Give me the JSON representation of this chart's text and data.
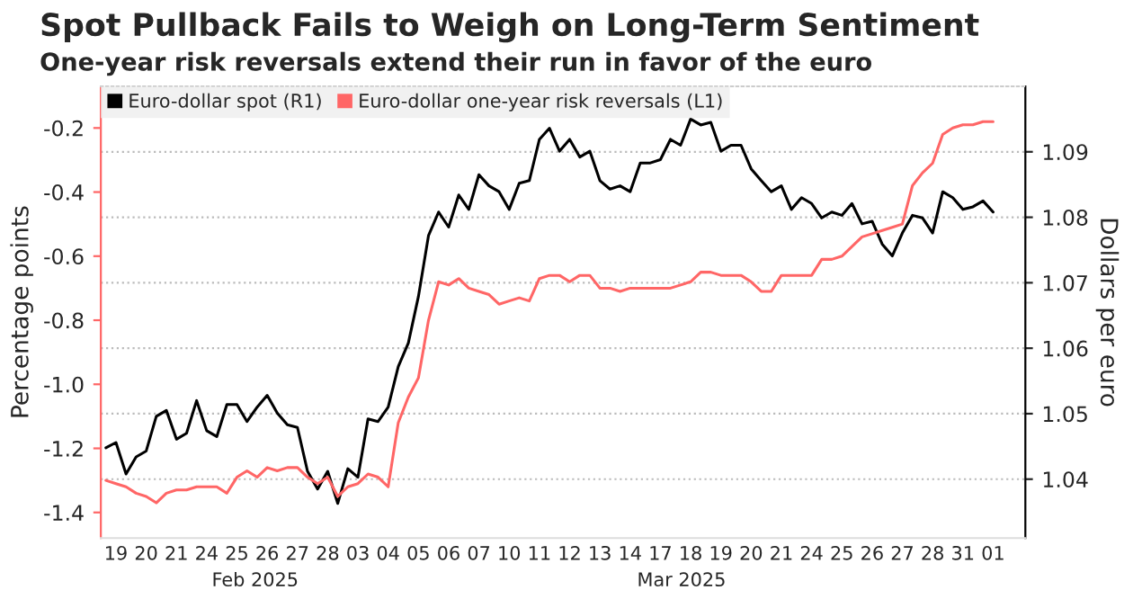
{
  "chart_data": {
    "type": "line",
    "title": "Spot Pullback Fails to Weigh on Long-Term Sentiment",
    "subtitle": "One-year risk reversals extend their run in favor of the euro",
    "ylabel": "Percentage points",
    "y2label": "Dollars per euro",
    "annotations": [
      "Feb 2025",
      "Mar 2025"
    ],
    "categories": [
      null,
      "19",
      null,
      null,
      "20",
      null,
      null,
      "21",
      null,
      null,
      "24",
      null,
      null,
      "25",
      null,
      null,
      "26",
      null,
      null,
      "27",
      null,
      null,
      "28",
      null,
      null,
      "03",
      null,
      null,
      "04",
      null,
      null,
      "05",
      null,
      null,
      "06",
      null,
      null,
      "07",
      null,
      null,
      "10",
      null,
      null,
      "11",
      null,
      null,
      "12",
      null,
      null,
      "13",
      null,
      null,
      "14",
      null,
      null,
      "17",
      null,
      null,
      "18",
      null,
      null,
      "19",
      null,
      null,
      "20",
      null,
      null,
      "21",
      null,
      null,
      "24",
      null,
      null,
      "25",
      null,
      null,
      "26",
      null,
      null,
      "27",
      null,
      null,
      "28",
      null,
      null,
      "31",
      null,
      null,
      "01",
      null
    ],
    "ylim": [
      -1.48,
      -0.07
    ],
    "yticks": [
      -1.4,
      -1.2,
      {
        "value": -1.0,
        "label": "-1.0"
      },
      -0.8,
      -0.6,
      -0.4,
      -0.2
    ],
    "y2lim": [
      1.031,
      1.1
    ],
    "y2ticks": [
      1.04,
      1.05,
      1.06,
      1.07,
      1.08,
      1.09
    ],
    "grid": "y2",
    "legend": "top left",
    "line_style": "solid",
    "series": [
      {
        "name": "Euro-dollar spot (R1)",
        "color": "#000000",
        "axis": "y2",
        "values": [
          1.0448,
          1.0456,
          1.0408,
          1.0434,
          1.0443,
          1.0496,
          1.0505,
          1.0461,
          1.047,
          1.052,
          1.0474,
          1.0465,
          1.0514,
          1.0514,
          1.0488,
          1.051,
          1.0528,
          1.0501,
          1.0483,
          1.0479,
          1.0412,
          1.0385,
          1.0412,
          1.0363,
          1.0416,
          1.0403,
          1.0492,
          1.0488,
          1.051,
          1.0572,
          1.0608,
          1.0679,
          1.0772,
          1.0808,
          1.0785,
          1.0834,
          1.0812,
          1.0865,
          1.0848,
          1.0839,
          1.0812,
          1.0852,
          1.0856,
          1.0919,
          1.0936,
          1.0901,
          1.0919,
          1.0892,
          1.0901,
          1.0856,
          1.0843,
          1.0848,
          1.0839,
          1.0883,
          1.0883,
          1.0888,
          1.0919,
          1.091,
          1.095,
          1.0941,
          1.0945,
          1.0901,
          1.091,
          1.091,
          1.0874,
          1.0856,
          1.0839,
          1.0848,
          1.0812,
          1.083,
          1.0821,
          1.0799,
          1.0808,
          1.0803,
          1.0821,
          1.079,
          1.0794,
          1.0759,
          1.0741,
          1.0776,
          1.0803,
          1.0799,
          1.0776,
          1.0839,
          1.083,
          1.0812,
          1.0816,
          1.0825,
          1.0808,
          null
        ]
      },
      {
        "name": "Euro-dollar one-year risk reversals (L1)",
        "color": "#ff6666",
        "values": [
          -1.3,
          -1.31,
          -1.32,
          -1.34,
          -1.35,
          -1.37,
          -1.34,
          -1.33,
          -1.33,
          -1.32,
          -1.32,
          -1.32,
          -1.34,
          -1.29,
          -1.27,
          -1.29,
          -1.26,
          -1.27,
          -1.26,
          -1.26,
          -1.29,
          -1.31,
          -1.29,
          -1.35,
          -1.32,
          -1.31,
          -1.28,
          -1.29,
          -1.32,
          -1.12,
          -1.04,
          -0.98,
          -0.8,
          -0.68,
          -0.69,
          -0.67,
          -0.7,
          -0.71,
          -0.72,
          -0.75,
          -0.74,
          -0.73,
          -0.74,
          -0.67,
          -0.66,
          -0.66,
          -0.68,
          -0.66,
          -0.66,
          -0.7,
          -0.7,
          -0.71,
          -0.7,
          -0.7,
          -0.7,
          -0.7,
          -0.7,
          -0.69,
          -0.68,
          -0.65,
          -0.65,
          -0.66,
          -0.66,
          -0.66,
          -0.68,
          -0.71,
          -0.71,
          -0.66,
          -0.66,
          -0.66,
          -0.66,
          -0.61,
          -0.61,
          -0.6,
          -0.57,
          -0.54,
          -0.53,
          -0.52,
          -0.51,
          -0.5,
          -0.38,
          -0.34,
          -0.31,
          -0.22,
          -0.2,
          -0.19,
          -0.19,
          -0.18,
          -0.18,
          null
        ]
      }
    ]
  }
}
